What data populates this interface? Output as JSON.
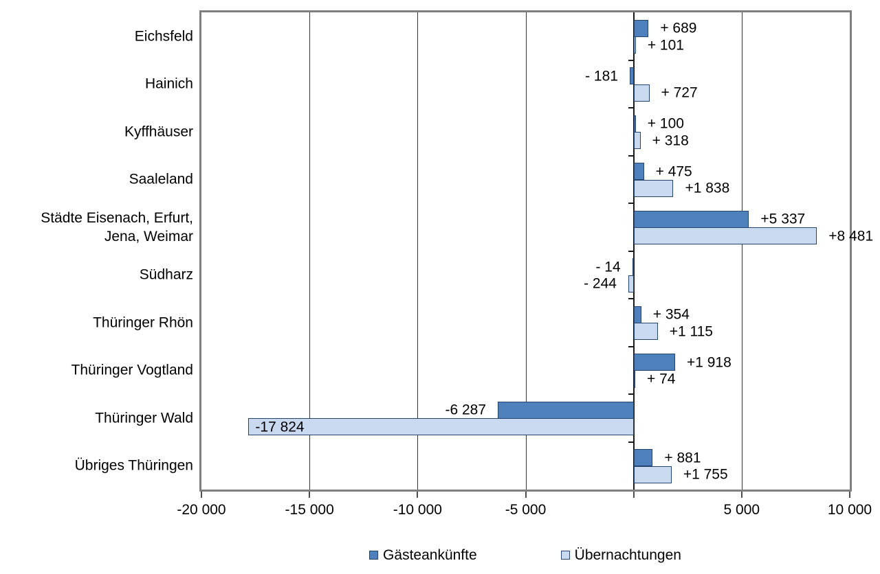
{
  "chart_data": {
    "type": "bar",
    "orientation": "horizontal",
    "title": "",
    "xlabel": "",
    "ylabel": "",
    "xlim": [
      -20000,
      10000
    ],
    "x_tick_interval": 5000,
    "x_tick_labels": [
      "-20 000",
      "-15 000",
      "-10 000",
      "-5 000",
      "",
      "5 000",
      "10 000"
    ],
    "grid": true,
    "legend_position": "bottom",
    "categories": [
      "Eichsfeld",
      "Hainich",
      "Kyffhäuser",
      "Saaleland",
      "Städte Eisenach, Erfurt,\nJena, Weimar",
      "Südharz",
      "Thüringer Rhön",
      "Thüringer Vogtland",
      "Thüringer Wald",
      "Übriges Thüringen"
    ],
    "series": [
      {
        "name": "Gästeankünfte",
        "color": "#4e80bc",
        "border_color": "#24436e",
        "values": [
          689,
          -181,
          100,
          475,
          5337,
          -14,
          354,
          1918,
          -6287,
          881
        ],
        "labels": [
          "+ 689",
          "- 181",
          "+ 100",
          "+ 475",
          "+5 337",
          "- 14",
          "+ 354",
          "+1 918",
          "-6 287",
          "+ 881"
        ],
        "label_inside": [
          false,
          false,
          false,
          false,
          false,
          false,
          false,
          false,
          false,
          false
        ]
      },
      {
        "name": "Übernachtungen",
        "color": "#c9d9f0",
        "border_color": "#24436e",
        "values": [
          101,
          727,
          318,
          1838,
          8481,
          -244,
          1115,
          74,
          -17824,
          1755
        ],
        "labels": [
          "+ 101",
          "+ 727",
          "+ 318",
          "+1 838",
          "+8 481",
          "- 244",
          "+1 115",
          "+ 74",
          "-17 824",
          "+1 755"
        ],
        "label_inside": [
          false,
          false,
          false,
          false,
          false,
          false,
          false,
          false,
          true,
          false
        ]
      }
    ]
  },
  "colors": {
    "plot_border": "#7f7f7f",
    "gridline": "#333333",
    "bar_dark": "#4e80bc",
    "bar_light": "#c9d9f0",
    "bar_border": "#24436e"
  }
}
